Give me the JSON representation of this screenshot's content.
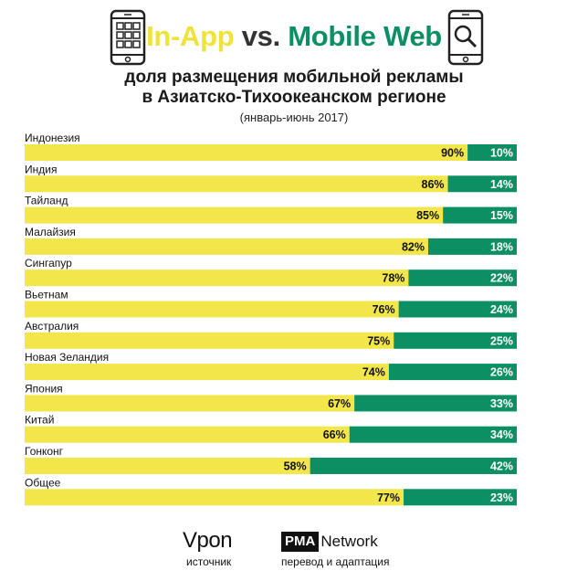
{
  "header": {
    "title_part1": "In-App",
    "title_part2": "vs.",
    "title_part3": "Mobile Web",
    "subtitle_line1": "доля размещения мобильной рекламы",
    "subtitle_line2": "в Азиатско-Тихоокеанском регионе",
    "period": "(январь-июнь 2017)",
    "left_icon": "phone-apps-icon",
    "right_icon": "phone-search-icon"
  },
  "chart_data": {
    "type": "bar",
    "orientation": "horizontal",
    "stacked": true,
    "categories": [
      "Индонезия",
      "Индия",
      "Тайланд",
      "Малайзия",
      "Сингапур",
      "Вьетнам",
      "Австралия",
      "Новая Зеландия",
      "Япония",
      "Китай",
      "Гонконг",
      "Общее"
    ],
    "series": [
      {
        "name": "In-App",
        "values": [
          90,
          86,
          85,
          82,
          78,
          76,
          75,
          74,
          67,
          66,
          58,
          77
        ],
        "color": "#f2e64a"
      },
      {
        "name": "Mobile Web",
        "values": [
          10,
          14,
          15,
          18,
          22,
          24,
          25,
          26,
          33,
          34,
          42,
          23
        ],
        "color": "#0b8f63"
      }
    ],
    "value_suffix": "%",
    "xlim": [
      0,
      100
    ]
  },
  "footer": {
    "source_logo": "Vpon",
    "source_label": "источник",
    "credit_logo_box": "PMA",
    "credit_logo_text": "Network",
    "credit_label": "перевод и адаптация"
  }
}
